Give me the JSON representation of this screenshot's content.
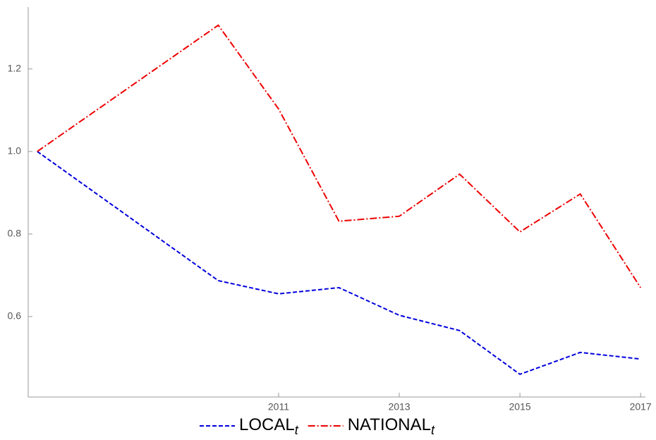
{
  "chart_data": {
    "type": "line",
    "x": [
      2007,
      2010,
      2011,
      2012,
      2013,
      2014,
      2015,
      2016,
      2017
    ],
    "series": [
      {
        "name": "LOCAL",
        "name_subscript": "t",
        "color": "#0000dd",
        "dash": "6,3",
        "values": [
          1.0,
          0.687,
          0.655,
          0.67,
          0.603,
          0.566,
          0.46,
          0.513,
          0.497
        ]
      },
      {
        "name": "NATIONAL",
        "name_subscript": "t",
        "color": "#ee0000",
        "dash": "10,3,2,3",
        "values": [
          1.0,
          1.306,
          1.103,
          0.831,
          0.843,
          0.945,
          0.805,
          0.897,
          0.67
        ]
      }
    ],
    "xlim": [
      2006.85,
      2017.08
    ],
    "xticks": [
      2011,
      2013,
      2015,
      2017
    ],
    "ylim": [
      0.405,
      1.35
    ],
    "yticks": [
      {
        "value": 0.6,
        "label": "0.6"
      },
      {
        "value": 0.8,
        "label": "0.8"
      },
      {
        "value": 1.0,
        "label": "1.0"
      },
      {
        "value": 1.2,
        "label": "1.2"
      }
    ],
    "legend": "bottom"
  }
}
